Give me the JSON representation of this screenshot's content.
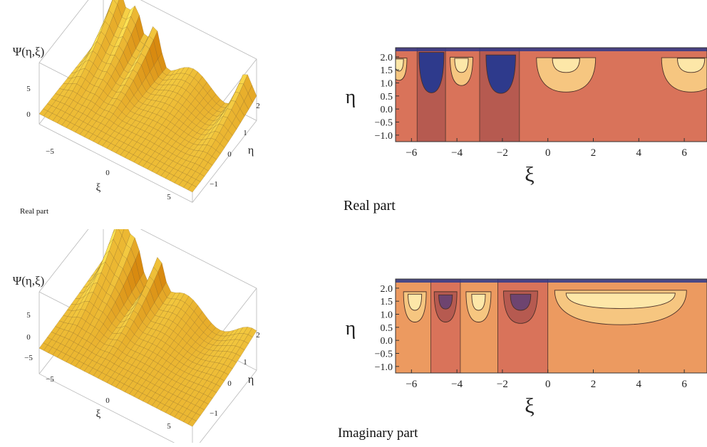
{
  "captions": {
    "top_left": "Real part",
    "top_right": "Real part",
    "bottom_right": "Imaginary part"
  },
  "colors": {
    "surface_light": "#ffdc5a",
    "surface_dark": "#d88a10",
    "mesh": "#6b4a10",
    "contour_deep_blue": "#2e3a8c",
    "contour_purple": "#6e4470",
    "contour_dark_red": "#b65a50",
    "contour_base": "#d9735a",
    "contour_orange": "#ec9a60",
    "contour_light": "#f6c680",
    "contour_pale": "#fde7a8"
  },
  "chart_data": [
    {
      "type": "surface3d",
      "panel": "top-left",
      "zlabel": "Ψ(η,ξ)",
      "xlabel": "ξ",
      "ylabel": "η",
      "zticks": [
        "5",
        "0"
      ],
      "xticks": [
        "−5",
        "0",
        "5"
      ],
      "yticks": [
        "2",
        "1",
        "0",
        "−1"
      ],
      "xlim": [
        -6.5,
        6.5
      ],
      "ylim": [
        -1.2,
        2.2
      ],
      "peaks": [
        {
          "xi": -5.3,
          "value": 9
        },
        {
          "xi": -3.7,
          "value": 7
        },
        {
          "xi": -2.1,
          "value": 8
        },
        {
          "xi": 5.5,
          "value": 6
        }
      ]
    },
    {
      "type": "surface3d",
      "panel": "bottom-left",
      "zlabel": "Ψ(η,ξ)",
      "xlabel": "ξ",
      "ylabel": "η",
      "zticks": [
        "5",
        "0",
        "−5"
      ],
      "xticks": [
        "−5",
        "0",
        "5"
      ],
      "yticks": [
        "2",
        "1",
        "0",
        "−1"
      ],
      "xlim": [
        -6.5,
        6.5
      ],
      "ylim": [
        -1.2,
        2.2
      ],
      "peaks": [
        {
          "xi": -5.0,
          "value": 9
        },
        {
          "xi": -3.7,
          "value": 7
        },
        {
          "xi": -1.8,
          "value": 8
        }
      ]
    },
    {
      "type": "contour",
      "panel": "top-right",
      "xlabel": "ξ",
      "ylabel": "η",
      "xticks": [
        "−6",
        "−4",
        "−2",
        "0",
        "2",
        "4",
        "6"
      ],
      "yticks": [
        "2.0",
        "1.5",
        "1.0",
        "0.5",
        "0.0",
        "−0.5",
        "−1.0"
      ],
      "xlim": [
        -6.7,
        7.0
      ],
      "ylim": [
        -1.25,
        2.35
      ],
      "bands": [
        {
          "from": -6.7,
          "to": -5.75,
          "fill": "contour_base"
        },
        {
          "from": -5.75,
          "to": -4.5,
          "fill": "contour_dark_red"
        },
        {
          "from": -4.5,
          "to": -3.0,
          "fill": "contour_base"
        },
        {
          "from": -3.0,
          "to": -1.25,
          "fill": "contour_dark_red"
        },
        {
          "from": -1.25,
          "to": 7.0,
          "fill": "contour_base"
        }
      ],
      "blobs": [
        {
          "xi": -6.55,
          "eta": 1.65,
          "rx": 0.35,
          "ry": 0.55,
          "fill": "contour_light"
        },
        {
          "xi": -6.55,
          "eta": 1.75,
          "rx": 0.2,
          "ry": 0.3,
          "fill": "contour_pale"
        },
        {
          "xi": -5.12,
          "eta": 1.62,
          "rx": 0.55,
          "ry": 1.0,
          "fill": "contour_deep_blue"
        },
        {
          "xi": -3.8,
          "eta": 1.6,
          "rx": 0.5,
          "ry": 0.7,
          "fill": "contour_light"
        },
        {
          "xi": -3.8,
          "eta": 1.75,
          "rx": 0.3,
          "ry": 0.35,
          "fill": "contour_pale"
        },
        {
          "xi": -2.07,
          "eta": 1.55,
          "rx": 0.65,
          "ry": 0.95,
          "fill": "contour_deep_blue"
        },
        {
          "xi": 0.8,
          "eta": 1.5,
          "rx": 1.3,
          "ry": 0.85,
          "fill": "contour_light"
        },
        {
          "xi": 0.8,
          "eta": 1.75,
          "rx": 0.6,
          "ry": 0.35,
          "fill": "contour_pale"
        },
        {
          "xi": 6.3,
          "eta": 1.5,
          "rx": 1.3,
          "ry": 0.85,
          "fill": "contour_light"
        },
        {
          "xi": 6.3,
          "eta": 1.75,
          "rx": 0.6,
          "ry": 0.35,
          "fill": "contour_pale"
        }
      ]
    },
    {
      "type": "contour",
      "panel": "bottom-right",
      "xlabel": "ξ",
      "ylabel": "η",
      "xticks": [
        "−6",
        "−4",
        "−2",
        "0",
        "2",
        "4",
        "6"
      ],
      "yticks": [
        "2.0",
        "1.5",
        "1.0",
        "0.5",
        "0.0",
        "−0.5",
        "−1.0"
      ],
      "xlim": [
        -6.7,
        7.0
      ],
      "ylim": [
        -1.25,
        2.35
      ],
      "bands": [
        {
          "from": -6.7,
          "to": -5.15,
          "fill": "contour_orange"
        },
        {
          "from": -5.15,
          "to": -3.85,
          "fill": "contour_base"
        },
        {
          "from": -3.85,
          "to": -2.2,
          "fill": "contour_orange"
        },
        {
          "from": -2.2,
          "to": 0.0,
          "fill": "contour_base"
        },
        {
          "from": 0.0,
          "to": 7.0,
          "fill": "contour_orange"
        }
      ],
      "blobs": [
        {
          "xi": -5.85,
          "eta": 1.45,
          "rx": 0.5,
          "ry": 0.75,
          "fill": "contour_light"
        },
        {
          "xi": -5.85,
          "eta": 1.55,
          "rx": 0.3,
          "ry": 0.4,
          "fill": "contour_pale"
        },
        {
          "xi": -4.5,
          "eta": 1.45,
          "rx": 0.5,
          "ry": 0.75,
          "fill": "contour_dark_red"
        },
        {
          "xi": -4.5,
          "eta": 1.55,
          "rx": 0.3,
          "ry": 0.35,
          "fill": "contour_purple"
        },
        {
          "xi": -3.05,
          "eta": 1.45,
          "rx": 0.55,
          "ry": 0.75,
          "fill": "contour_light"
        },
        {
          "xi": -3.05,
          "eta": 1.55,
          "rx": 0.3,
          "ry": 0.4,
          "fill": "contour_pale"
        },
        {
          "xi": -1.2,
          "eta": 1.45,
          "rx": 0.75,
          "ry": 0.8,
          "fill": "contour_dark_red"
        },
        {
          "xi": -1.2,
          "eta": 1.55,
          "rx": 0.45,
          "ry": 0.4,
          "fill": "contour_purple"
        },
        {
          "xi": 3.2,
          "eta": 1.45,
          "rx": 2.9,
          "ry": 0.85,
          "fill": "contour_light"
        },
        {
          "xi": 3.2,
          "eta": 1.6,
          "rx": 2.4,
          "ry": 0.38,
          "fill": "contour_pale"
        }
      ]
    }
  ]
}
